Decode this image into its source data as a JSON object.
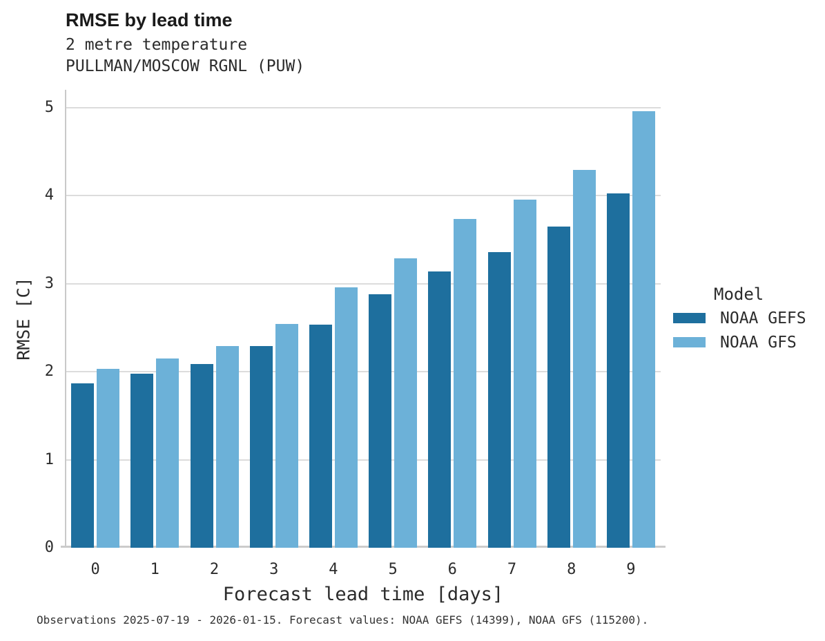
{
  "chart_data": {
    "type": "bar",
    "title": "RMSE by lead time",
    "subtitle": [
      "2 metre temperature",
      "PULLMAN/MOSCOW RGNL (PUW)"
    ],
    "categories": [
      "0",
      "1",
      "2",
      "3",
      "4",
      "5",
      "6",
      "7",
      "8",
      "9"
    ],
    "series": [
      {
        "name": "NOAA GEFS",
        "color": "#1e6f9e",
        "values": [
          1.87,
          1.98,
          2.09,
          2.29,
          2.53,
          2.88,
          3.14,
          3.36,
          3.65,
          4.02
        ]
      },
      {
        "name": "NOAA GFS",
        "color": "#6cb1d8",
        "values": [
          2.03,
          2.15,
          2.29,
          2.54,
          2.96,
          3.29,
          3.73,
          3.95,
          4.29,
          4.96
        ]
      }
    ],
    "xlabel": "Forecast lead time [days]",
    "ylabel": "RMSE [C]",
    "ylim": [
      0,
      5.2
    ],
    "yticks": [
      0,
      1,
      2,
      3,
      4,
      5
    ],
    "grid": "horizontal",
    "legend_title": "Model",
    "legend_position": "right"
  },
  "caption": "Observations 2025-07-19 - 2026-01-15. Forecast values: NOAA GEFS (14399), NOAA GFS (115200)."
}
